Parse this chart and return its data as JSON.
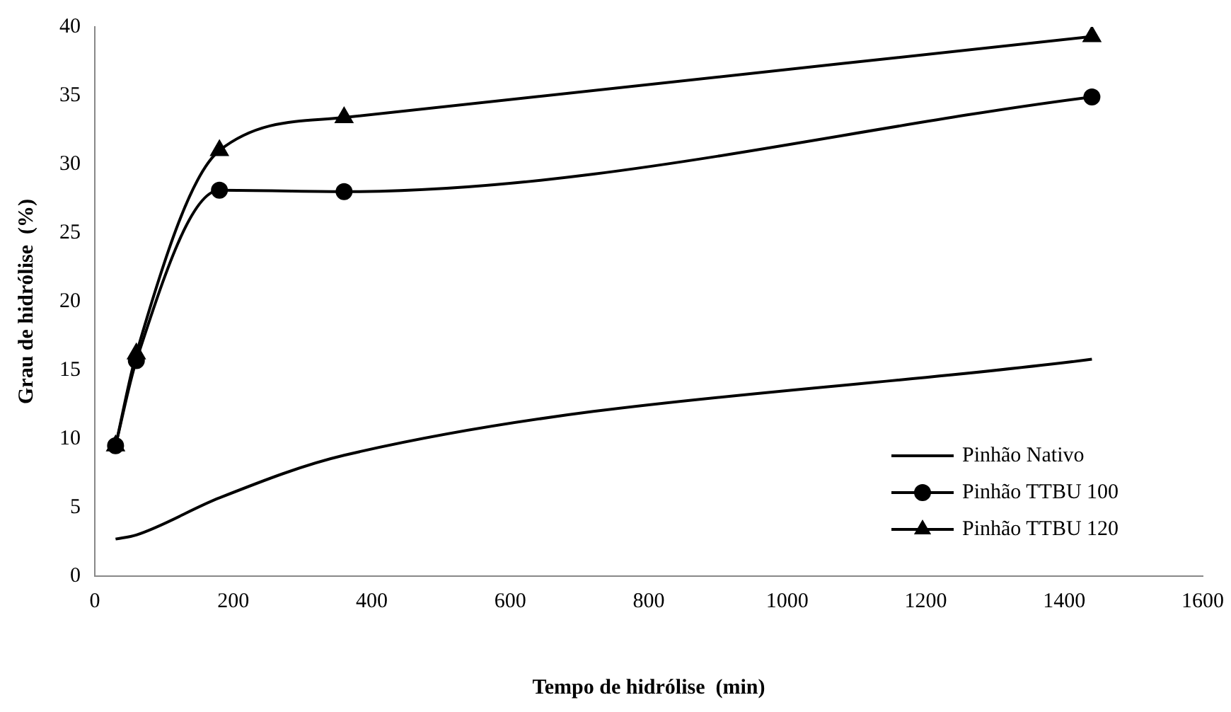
{
  "chart_data": {
    "type": "line",
    "xlabel": "Tempo de hidrólise  (min)",
    "ylabel": "Grau de hidrólise  (%)",
    "x": [
      30,
      60,
      180,
      360,
      1440
    ],
    "series": [
      {
        "name": "Pinhão Nativo",
        "color": "#000000",
        "marker": "none",
        "values": [
          2.7,
          3.0,
          5.7,
          8.8,
          15.8
        ]
      },
      {
        "name": "Pinhão TTBU 100",
        "color": "#000000",
        "marker": "circle",
        "values": [
          9.5,
          15.7,
          28.1,
          28.0,
          34.9
        ]
      },
      {
        "name": "Pinhão TTBU 120",
        "color": "#000000",
        "marker": "triangle",
        "values": [
          9.5,
          16.2,
          31.0,
          33.4,
          39.3
        ]
      }
    ],
    "xlim": [
      0,
      1600
    ],
    "xticks": [
      0,
      200,
      400,
      600,
      800,
      1000,
      1200,
      1400,
      1600
    ],
    "ylim": [
      0,
      40
    ],
    "yticks": [
      0,
      5,
      10,
      15,
      20,
      25,
      30,
      35,
      40
    ],
    "grid": false,
    "legend": "bottom right",
    "line_style": "solid"
  }
}
